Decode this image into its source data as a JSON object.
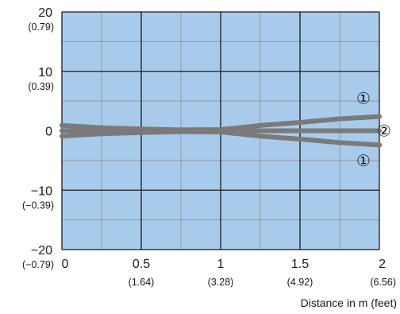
{
  "chart_data": {
    "type": "line",
    "title": "",
    "xlabel": "Distance in m (feet)",
    "ylabel": "",
    "xlim": [
      0,
      2
    ],
    "ylim": [
      -20,
      20
    ],
    "grid": true,
    "colors": {
      "plot_background": "#a8cbeb",
      "major_grid": "#1a1a1a",
      "minor_grid": "#8e98a6",
      "curves": "#7a7a7a"
    },
    "x_ticks": [
      {
        "value": 0,
        "label": "0",
        "sub": ""
      },
      {
        "value": 0.5,
        "label": "0.5",
        "sub": "(1.64)"
      },
      {
        "value": 1,
        "label": "1",
        "sub": "(3.28)"
      },
      {
        "value": 1.5,
        "label": "1.5",
        "sub": "(4.92)"
      },
      {
        "value": 2,
        "label": "2",
        "sub": "(6.56)"
      }
    ],
    "y_ticks": [
      {
        "value": 20,
        "label": "20",
        "sub": "(0.79)"
      },
      {
        "value": 10,
        "label": "10",
        "sub": "(0.39)"
      },
      {
        "value": 0,
        "label": "0",
        "sub": ""
      },
      {
        "value": -10,
        "label": "−10",
        "sub": "(−0.39)"
      },
      {
        "value": -20,
        "label": "−20",
        "sub": "(−0.79)"
      }
    ],
    "series": [
      {
        "values": [
          [
            0,
            0.9
          ],
          [
            0.25,
            0.5
          ],
          [
            0.5,
            0.3
          ],
          [
            0.75,
            0.15
          ],
          [
            1.0,
            0.2
          ],
          [
            1.25,
            0.9
          ],
          [
            1.5,
            1.4
          ],
          [
            1.75,
            2.0
          ],
          [
            2.0,
            2.4
          ]
        ],
        "marker": "1"
      },
      {
        "values": [
          [
            0,
            -0.9
          ],
          [
            0.25,
            -0.5
          ],
          [
            0.5,
            -0.3
          ],
          [
            0.75,
            -0.15
          ],
          [
            1.0,
            -0.2
          ],
          [
            1.25,
            -0.9
          ],
          [
            1.5,
            -1.4
          ],
          [
            1.75,
            -2.0
          ],
          [
            2.0,
            -2.4
          ]
        ],
        "marker": "1"
      },
      {
        "values": [
          [
            0,
            0
          ],
          [
            0.5,
            0
          ],
          [
            1.0,
            0
          ],
          [
            1.5,
            0
          ],
          [
            2.0,
            0
          ]
        ],
        "marker": "2"
      }
    ],
    "markers": [
      {
        "text": "①",
        "x": 1.9,
        "y": 5.5
      },
      {
        "text": "②",
        "x": 2.03,
        "y": 0
      },
      {
        "text": "①",
        "x": 1.9,
        "y": -5.0
      }
    ]
  }
}
